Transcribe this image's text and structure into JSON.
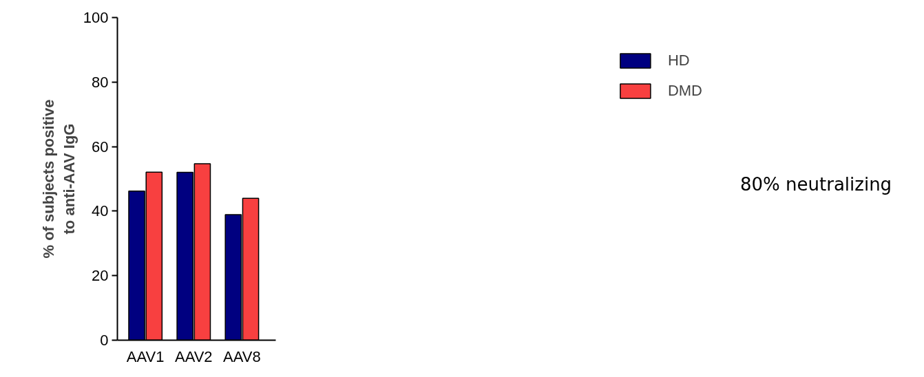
{
  "chart_data": {
    "type": "bar",
    "ylabel": "% of subjects positive\nto anti-AAV IgG",
    "categories": [
      "AAV1",
      "AAV2",
      "AAV8"
    ],
    "series": [
      {
        "name": "HD",
        "color": "#000080",
        "values": [
          46.2,
          52.0,
          38.9
        ]
      },
      {
        "name": "DMD",
        "color": "#f84040",
        "values": [
          52.1,
          54.7,
          44.0
        ]
      }
    ],
    "ylim": [
      0,
      100
    ],
    "yticks": [
      0,
      20,
      40,
      60,
      80,
      100
    ],
    "legend": "top right",
    "grid": false,
    "annotations": [
      "80% neutralizing"
    ]
  }
}
